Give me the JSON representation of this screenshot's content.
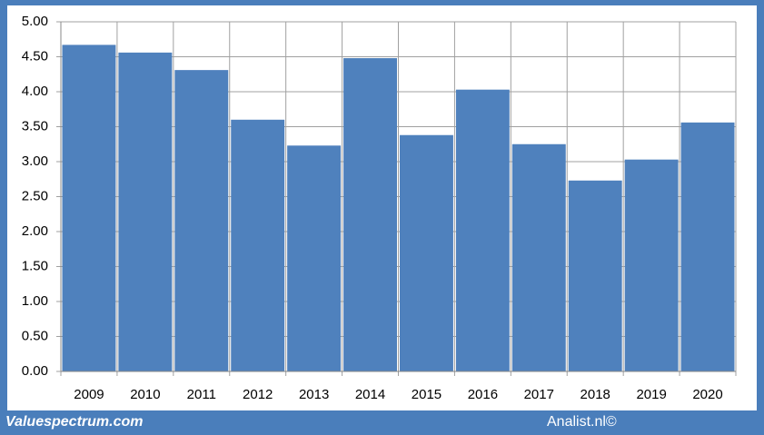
{
  "chart_data": {
    "type": "bar",
    "categories": [
      "2009",
      "2010",
      "2011",
      "2012",
      "2013",
      "2014",
      "2015",
      "2016",
      "2017",
      "2018",
      "2019",
      "2020"
    ],
    "values": [
      4.67,
      4.56,
      4.31,
      3.6,
      3.23,
      4.48,
      3.38,
      4.03,
      3.25,
      2.73,
      3.03,
      3.56
    ],
    "color": "#4f81bd",
    "ylim": [
      0,
      5
    ],
    "yticks": [
      {
        "value": 0,
        "label": "0.00"
      },
      {
        "value": 0.5,
        "label": "0.50"
      },
      {
        "value": 1,
        "label": "1.00"
      },
      {
        "value": 1.5,
        "label": "1.50"
      },
      {
        "value": 2,
        "label": "2.00"
      },
      {
        "value": 2.5,
        "label": "2.50"
      },
      {
        "value": 3,
        "label": "3.00"
      },
      {
        "value": 3.5,
        "label": "3.50"
      },
      {
        "value": 4,
        "label": "4.00"
      },
      {
        "value": 4.5,
        "label": "4.50"
      },
      {
        "value": 5,
        "label": "5.00"
      }
    ],
    "grid": true
  },
  "footer": {
    "left": "Valuespectrum.com",
    "right": "Analist.nl©"
  }
}
